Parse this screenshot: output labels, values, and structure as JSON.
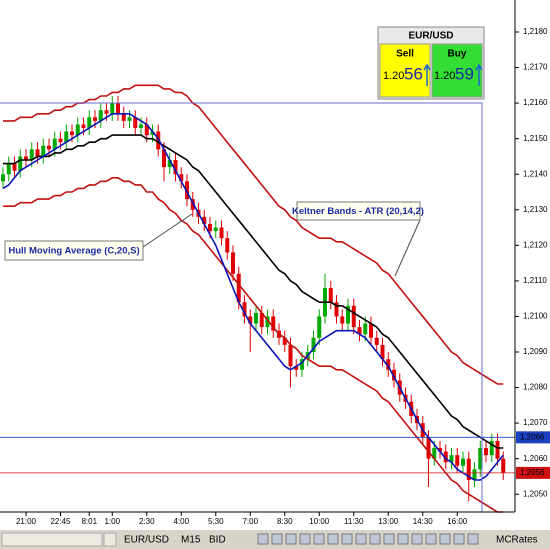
{
  "chart_data": {
    "type": "candlestick",
    "categories": [
      null,
      null,
      null,
      null,
      "21:00",
      null,
      null,
      null,
      null,
      null,
      "22:45",
      null,
      null,
      null,
      null,
      "8:01",
      null,
      null,
      null,
      "1:00",
      null,
      null,
      null,
      null,
      null,
      "2:30",
      null,
      null,
      null,
      null,
      null,
      "4:00",
      null,
      null,
      null,
      null,
      null,
      "5:30",
      null,
      null,
      null,
      null,
      null,
      "7:00",
      null,
      null,
      null,
      null,
      null,
      "8:30",
      null,
      null,
      null,
      null,
      null,
      "10:00",
      null,
      null,
      null,
      null,
      null,
      "11:30",
      null,
      null,
      null,
      null,
      null,
      "13:00",
      null,
      null,
      null,
      null,
      null,
      "14:30",
      null,
      null,
      null,
      null,
      null,
      "16:00",
      null,
      null,
      null,
      null,
      null,
      null,
      null,
      null
    ],
    "open": [
      1.2138,
      1.214,
      1.2143,
      1.2141,
      1.2145,
      1.2144,
      1.2147,
      1.2145,
      1.2148,
      1.2147,
      1.215,
      1.2149,
      1.2152,
      1.2151,
      1.2154,
      1.2153,
      1.2156,
      1.2155,
      1.2158,
      1.2157,
      1.216,
      1.2157,
      1.2155,
      1.2156,
      1.2153,
      1.2154,
      1.2151,
      1.2152,
      1.2147,
      1.2142,
      1.2144,
      1.214,
      1.2138,
      1.2133,
      1.213,
      1.2128,
      1.2126,
      1.2124,
      1.2125,
      1.2122,
      1.2118,
      1.2112,
      1.2104,
      1.21,
      1.2098,
      1.2101,
      1.2097,
      1.21,
      1.2096,
      1.2094,
      1.2092,
      1.2086,
      1.2085,
      1.2088,
      1.209,
      1.2094,
      1.21,
      1.2108,
      1.2104,
      1.21,
      1.2098,
      1.2103,
      1.2097,
      1.2095,
      1.2098,
      1.2094,
      1.2092,
      1.2088,
      1.2085,
      1.2082,
      1.2078,
      1.2076,
      1.2072,
      1.207,
      1.2066,
      1.206,
      1.2063,
      1.2062,
      1.2059,
      1.2061,
      1.2058,
      1.206,
      1.2054,
      1.2057,
      1.2063,
      1.2061,
      1.2065,
      1.206
    ],
    "high": [
      1.2142,
      1.2145,
      1.2145,
      1.2147,
      1.2147,
      1.2149,
      1.2149,
      1.215,
      1.215,
      1.2152,
      1.2152,
      1.2154,
      1.2154,
      1.2156,
      1.2156,
      1.2158,
      1.2158,
      1.216,
      1.216,
      1.2162,
      1.2162,
      1.2159,
      1.2158,
      1.2158,
      1.2156,
      1.2156,
      1.2154,
      1.2154,
      1.2149,
      1.2146,
      1.2146,
      1.2142,
      1.214,
      1.2135,
      1.2132,
      1.213,
      1.2128,
      1.2127,
      1.2127,
      1.2124,
      1.212,
      1.2114,
      1.2106,
      1.2102,
      1.2103,
      1.2103,
      1.2102,
      1.2102,
      1.2098,
      1.2096,
      1.2094,
      1.2088,
      1.209,
      1.2092,
      1.2096,
      1.2102,
      1.2112,
      1.211,
      1.2106,
      1.2102,
      1.2105,
      1.2105,
      1.2099,
      1.21,
      1.21,
      1.2096,
      1.2094,
      1.209,
      1.2087,
      1.2084,
      1.208,
      1.2078,
      1.2074,
      1.2072,
      1.2068,
      1.2065,
      1.2065,
      1.2064,
      1.2063,
      1.2063,
      1.2062,
      1.2062,
      1.2059,
      1.2065,
      1.2065,
      1.2067,
      1.2067,
      1.2062
    ],
    "low": [
      1.2136,
      1.2138,
      1.2139,
      1.2139,
      1.2142,
      1.2142,
      1.2143,
      1.2143,
      1.2145,
      1.2145,
      1.2147,
      1.2147,
      1.2149,
      1.2149,
      1.2151,
      1.2151,
      1.2153,
      1.2153,
      1.2155,
      1.2155,
      1.2155,
      1.2153,
      1.2153,
      1.2151,
      1.2151,
      1.2149,
      1.2149,
      1.2145,
      1.2138,
      1.214,
      1.2138,
      1.2136,
      1.2131,
      1.2128,
      1.2126,
      1.2124,
      1.2122,
      1.2122,
      1.212,
      1.2116,
      1.211,
      1.2102,
      1.2098,
      1.209,
      1.2096,
      1.2095,
      1.2095,
      1.2094,
      1.2092,
      1.209,
      1.208,
      1.2083,
      1.2083,
      1.2086,
      1.2088,
      1.2092,
      1.2098,
      1.2102,
      1.2098,
      1.2096,
      1.2096,
      1.2095,
      1.2093,
      1.2093,
      1.2092,
      1.209,
      1.2086,
      1.2083,
      1.208,
      1.2076,
      1.2074,
      1.207,
      1.2068,
      1.2064,
      1.2052,
      1.2058,
      1.206,
      1.2057,
      1.2057,
      1.2056,
      1.2056,
      1.2048,
      1.2052,
      1.2055,
      1.2059,
      1.2059,
      1.2058,
      1.2054
    ],
    "close": [
      1.214,
      1.2143,
      1.2141,
      1.2145,
      1.2144,
      1.2147,
      1.2145,
      1.2148,
      1.2147,
      1.215,
      1.2149,
      1.2152,
      1.2151,
      1.2154,
      1.2153,
      1.2156,
      1.2155,
      1.2158,
      1.2157,
      1.216,
      1.2157,
      1.2155,
      1.2156,
      1.2153,
      1.2154,
      1.2151,
      1.2152,
      1.2147,
      1.2142,
      1.2144,
      1.214,
      1.2138,
      1.2133,
      1.213,
      1.2128,
      1.2126,
      1.2124,
      1.2125,
      1.2122,
      1.2118,
      1.2112,
      1.2104,
      1.21,
      1.2098,
      1.2101,
      1.2097,
      1.21,
      1.2096,
      1.2094,
      1.2092,
      1.2086,
      1.2085,
      1.2088,
      1.209,
      1.2094,
      1.21,
      1.2108,
      1.2104,
      1.21,
      1.2098,
      1.2103,
      1.2097,
      1.2095,
      1.2098,
      1.2094,
      1.2092,
      1.2088,
      1.2085,
      1.2082,
      1.2078,
      1.2076,
      1.2072,
      1.207,
      1.2066,
      1.206,
      1.2063,
      1.2062,
      1.2059,
      1.2061,
      1.2058,
      1.206,
      1.2054,
      1.2057,
      1.2063,
      1.2061,
      1.2065,
      1.206,
      1.2056
    ],
    "up_color": "#00a800",
    "down_color": "#e00000",
    "series": [
      {
        "color": "#000000",
        "values": [
          1.2143,
          1.2143,
          1.2143,
          1.2144,
          1.2144,
          1.2144,
          1.2145,
          1.2145,
          1.2145,
          1.2146,
          1.2146,
          1.2147,
          1.2147,
          1.2148,
          1.2148,
          1.2149,
          1.2149,
          1.215,
          1.215,
          1.2151,
          1.2151,
          1.2151,
          1.2151,
          1.2151,
          1.2151,
          1.215,
          1.215,
          1.2149,
          1.2148,
          1.2147,
          1.2146,
          1.2145,
          1.2144,
          1.2142,
          1.2141,
          1.2139,
          1.2137,
          1.2135,
          1.2133,
          1.2131,
          1.2129,
          1.2127,
          1.2125,
          1.2123,
          1.2121,
          1.2119,
          1.2117,
          1.2115,
          1.2113,
          1.2112,
          1.211,
          1.2109,
          1.2107,
          1.2106,
          1.2105,
          1.2104,
          1.2104,
          1.2104,
          1.2103,
          1.2103,
          1.2102,
          1.2101,
          1.21,
          1.2099,
          1.2098,
          1.2097,
          1.2095,
          1.2094,
          1.2092,
          1.209,
          1.2088,
          1.2086,
          1.2084,
          1.2082,
          1.208,
          1.2078,
          1.2076,
          1.2074,
          1.2072,
          1.2071,
          1.2069,
          1.2068,
          1.2067,
          1.2066,
          1.2065,
          1.2064,
          1.2063,
          1.2063
        ]
      },
      {
        "color": "#c01010",
        "values": [
          1.2155,
          1.2155,
          1.2155,
          1.2156,
          1.2156,
          1.2156,
          1.2157,
          1.2157,
          1.2157,
          1.2158,
          1.2158,
          1.2159,
          1.2159,
          1.216,
          1.216,
          1.2161,
          1.2161,
          1.2162,
          1.2162,
          1.2163,
          1.2163,
          1.2164,
          1.2164,
          1.2165,
          1.2165,
          1.2165,
          1.2165,
          1.2165,
          1.2164,
          1.2164,
          1.2163,
          1.2163,
          1.2162,
          1.216,
          1.2159,
          1.2157,
          1.2155,
          1.2153,
          1.2151,
          1.2149,
          1.2147,
          1.2145,
          1.2143,
          1.2141,
          1.2139,
          1.2137,
          1.2135,
          1.2133,
          1.2131,
          1.213,
          1.2128,
          1.2127,
          1.2125,
          1.2124,
          1.2123,
          1.2122,
          1.2122,
          1.2122,
          1.2121,
          1.2121,
          1.212,
          1.2119,
          1.2118,
          1.2117,
          1.2116,
          1.2115,
          1.2113,
          1.2112,
          1.211,
          1.2108,
          1.2106,
          1.2104,
          1.2102,
          1.21,
          1.2098,
          1.2096,
          1.2094,
          1.2092,
          1.209,
          1.2089,
          1.2087,
          1.2086,
          1.2085,
          1.2084,
          1.2083,
          1.2082,
          1.2081,
          1.2081
        ]
      },
      {
        "color": "#c01010",
        "values": [
          1.2131,
          1.2131,
          1.2131,
          1.2132,
          1.2132,
          1.2132,
          1.2133,
          1.2133,
          1.2133,
          1.2134,
          1.2134,
          1.2135,
          1.2135,
          1.2136,
          1.2136,
          1.2137,
          1.2137,
          1.2138,
          1.2138,
          1.2139,
          1.2139,
          1.2138,
          1.2138,
          1.2137,
          1.2137,
          1.2135,
          1.2135,
          1.2133,
          1.2132,
          1.213,
          1.2129,
          1.2127,
          1.2126,
          1.2124,
          1.2123,
          1.2121,
          1.2119,
          1.2117,
          1.2115,
          1.2113,
          1.2111,
          1.2109,
          1.2107,
          1.2105,
          1.2103,
          1.2101,
          1.2099,
          1.2097,
          1.2095,
          1.2094,
          1.2092,
          1.2091,
          1.2089,
          1.2088,
          1.2087,
          1.2086,
          1.2086,
          1.2086,
          1.2085,
          1.2085,
          1.2084,
          1.2083,
          1.2082,
          1.2081,
          1.208,
          1.2079,
          1.2077,
          1.2076,
          1.2074,
          1.2072,
          1.207,
          1.2068,
          1.2066,
          1.2064,
          1.2062,
          1.206,
          1.2058,
          1.2056,
          1.2054,
          1.2053,
          1.2051,
          1.205,
          1.2049,
          1.2048,
          1.2047,
          1.2046,
          1.2045,
          1.2045
        ]
      },
      {
        "color": "#0a14b4",
        "values": [
          1.2136,
          1.2137,
          1.2139,
          1.2141,
          1.2142,
          1.2143,
          1.2144,
          1.2145,
          1.2146,
          1.2147,
          1.2148,
          1.2149,
          1.215,
          1.2151,
          1.2152,
          1.2153,
          1.2154,
          1.2155,
          1.2156,
          1.2157,
          1.2157,
          1.2157,
          1.2157,
          1.2156,
          1.2155,
          1.2154,
          1.2152,
          1.215,
          1.2147,
          1.2144,
          1.2141,
          1.2138,
          1.2135,
          1.2132,
          1.2129,
          1.2126,
          1.2123,
          1.212,
          1.2116,
          1.2112,
          1.2108,
          1.2104,
          1.2101,
          1.2098,
          1.2096,
          1.2094,
          1.2092,
          1.209,
          1.2088,
          1.2086,
          1.2085,
          1.2086,
          1.2087,
          1.2089,
          1.2091,
          1.2093,
          1.2094,
          1.2095,
          1.2096,
          1.2096,
          1.2096,
          1.2096,
          1.2095,
          1.2094,
          1.2092,
          1.209,
          1.2088,
          1.2086,
          1.2083,
          1.208,
          1.2077,
          1.2074,
          1.2071,
          1.2068,
          1.2066,
          1.2064,
          1.2062,
          1.206,
          1.2059,
          1.2057,
          1.2056,
          1.2055,
          1.2054,
          1.2054,
          1.2055,
          1.2057,
          1.2059,
          1.2061
        ]
      }
    ],
    "ylim": [
      1.2045,
      1.2189
    ],
    "yticks": [
      {
        "value": 1.205,
        "label": "1,2050"
      },
      {
        "value": 1.206,
        "label": "1,2060"
      },
      {
        "value": 1.207,
        "label": "1,2070"
      },
      {
        "value": 1.208,
        "label": "1,2080"
      },
      {
        "value": 1.209,
        "label": "1,2090"
      },
      {
        "value": 1.21,
        "label": "1,2100"
      },
      {
        "value": 1.211,
        "label": "1,2110"
      },
      {
        "value": 1.212,
        "label": "1,2120"
      },
      {
        "value": 1.213,
        "label": "1,2130"
      },
      {
        "value": 1.214,
        "label": "1,2140"
      },
      {
        "value": 1.215,
        "label": "1,2150"
      },
      {
        "value": 1.216,
        "label": "1,2160"
      },
      {
        "value": 1.217,
        "label": "1,2170"
      },
      {
        "value": 1.218,
        "label": "1,2180"
      }
    ],
    "price_markers": [
      {
        "value": 1.2066,
        "label": "1,2066",
        "color": "#1a3fc0"
      },
      {
        "value": 1.2056,
        "label": "1,2056",
        "color": "#d01010"
      }
    ],
    "annotations": [
      "Keltner Bands - ATR (20,14,2)",
      "Hull Moving Average (C,20,S)"
    ]
  },
  "widget": {
    "symbol": "EUR/USD",
    "sell_label": "Sell",
    "buy_label": "Buy",
    "sell_price": {
      "big_figure": "1.20",
      "pips": "56"
    },
    "buy_price": {
      "big_figure": "1.20",
      "pips": "59"
    }
  },
  "toolbar": {
    "symbol": "EUR/USD",
    "timeframe": "M15",
    "price_type": "BID",
    "provider": "MCRates"
  }
}
